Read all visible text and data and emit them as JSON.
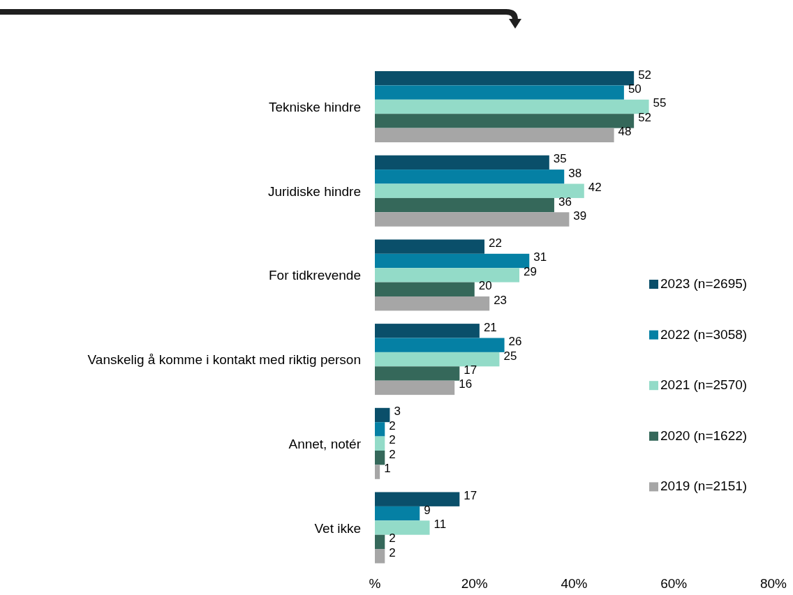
{
  "chart_data": {
    "type": "bar",
    "orientation": "horizontal",
    "categories": [
      "Tekniske hindre",
      "Juridiske hindre",
      "For tidkrevende",
      "Vanskelig å komme i kontakt med riktig person",
      "Annet, notér",
      "Vet ikke"
    ],
    "series": [
      {
        "name": "2023 (n=2695)",
        "color": "#0a4f6a",
        "values": [
          52,
          35,
          22,
          21,
          3,
          17
        ]
      },
      {
        "name": "2022 (n=3058)",
        "color": "#0580a4",
        "values": [
          50,
          38,
          31,
          26,
          2,
          9
        ]
      },
      {
        "name": "2021 (n=2570)",
        "color": "#93dbc8",
        "values": [
          55,
          42,
          29,
          25,
          2,
          11
        ]
      },
      {
        "name": "2020 (n=1622)",
        "color": "#35685a",
        "values": [
          52,
          36,
          20,
          17,
          2,
          2
        ]
      },
      {
        "name": "2019 (n=2151)",
        "color": "#a6a6a6",
        "values": [
          48,
          39,
          23,
          16,
          1,
          2
        ]
      }
    ],
    "xlim": [
      0,
      80
    ],
    "xticks": [
      {
        "value": 0,
        "label": "%"
      },
      {
        "value": 20,
        "label": "20%"
      },
      {
        "value": 40,
        "label": "40%"
      },
      {
        "value": 60,
        "label": "60%"
      },
      {
        "value": 80,
        "label": "80%"
      }
    ],
    "data_labels": true,
    "legend": "right",
    "grid": false
  }
}
